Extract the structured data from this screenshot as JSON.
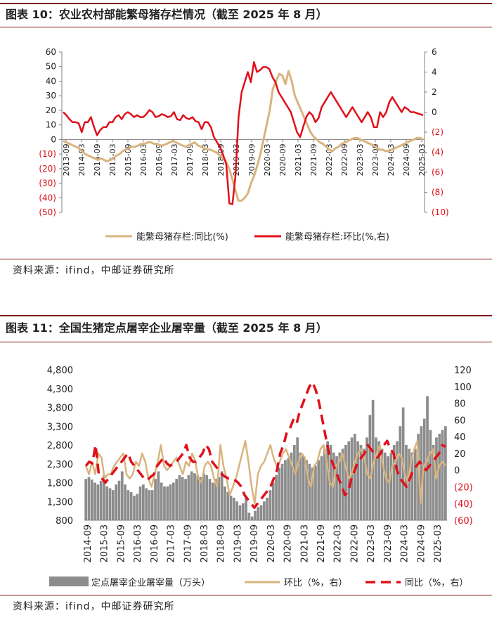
{
  "fig1": {
    "title": "图表 10：农业农村部能繁母猪存栏情况（截至 2025 年 8 月）",
    "source": "资料来源：ifind，中邮证券研究所",
    "chart_data": {
      "type": "line",
      "x_ticks": [
        "2013-09",
        "2014-03",
        "2014-09",
        "2015-03",
        "2015-09",
        "2016-03",
        "2016-09",
        "2017-03",
        "2017-09",
        "2018-03",
        "2018-09",
        "2019-03",
        "2019-09",
        "2020-03",
        "2020-09",
        "2021-03",
        "2021-09",
        "2022-03",
        "2022-09",
        "2023-03",
        "2023-09",
        "2024-03",
        "2024-09",
        "2025-03"
      ],
      "y_left": {
        "min": -50,
        "max": 60,
        "ticks": [
          60,
          50,
          40,
          30,
          20,
          10,
          0,
          -10,
          -20,
          -30,
          -40,
          -50
        ],
        "labels": [
          "60",
          "50",
          "40",
          "30",
          "20",
          "10",
          "0",
          "(10)",
          "(20)",
          "(30)",
          "(40)",
          "(50)"
        ]
      },
      "y_right": {
        "min": -10,
        "max": 6,
        "ticks": [
          6,
          4,
          2,
          0,
          -2,
          -4,
          -6,
          -8,
          -10
        ],
        "labels": [
          "6",
          "4",
          "2",
          "0",
          "(2)",
          "(4)",
          "(6)",
          "(8)",
          "(10)"
        ]
      },
      "series": [
        {
          "name": "能繁母猪存栏:同比(%)",
          "axis": "left",
          "color": "#d9b47e",
          "values": [
            -1,
            -2,
            -3,
            -4,
            -5,
            -6,
            -8,
            -10,
            -11,
            -12,
            -13,
            -14,
            -13,
            -14,
            -15,
            -14,
            -13,
            -11,
            -10,
            -8,
            -7,
            -6,
            -5,
            -5,
            -4,
            -3,
            -3,
            -2,
            -2,
            -3,
            -3,
            -4,
            -4,
            -3,
            -2,
            -1,
            -2,
            -3,
            -4,
            -5,
            -4,
            -3,
            -2,
            -4,
            -5,
            -6,
            -7,
            -7,
            -8,
            -9,
            -11,
            -13,
            -15,
            -20,
            -27,
            -35,
            -42,
            -42,
            -40,
            -37,
            -30,
            -25,
            -18,
            -10,
            0,
            10,
            20,
            35,
            40,
            45,
            44,
            38,
            47,
            40,
            30,
            25,
            20,
            15,
            10,
            5,
            2,
            0,
            -2,
            -3,
            -5,
            -7,
            -8,
            -6,
            -5,
            -3,
            -2,
            -1,
            0,
            1,
            1,
            0,
            -1,
            -2,
            -3,
            -4,
            -5,
            -7,
            -7,
            -8,
            -8,
            -7,
            -6,
            -5,
            -4,
            -3,
            -2,
            -1,
            0,
            1,
            1,
            0
          ]
        },
        {
          "name": "能繁母猪存栏:环比(%,右)",
          "axis": "right",
          "color": "#e0101a",
          "values": [
            0,
            -0.3,
            -0.7,
            -1,
            -1,
            -1.1,
            -2,
            -1,
            -1,
            -0.5,
            -1.5,
            -2.3,
            -1.8,
            -1.5,
            -1.5,
            -1,
            -1,
            -0.5,
            -0.3,
            -0.7,
            -0.2,
            0,
            -0.2,
            -0.5,
            -0.3,
            -0.5,
            -0.5,
            -0.2,
            0.2,
            0,
            -0.5,
            -0.4,
            -0.2,
            -0.3,
            -0.5,
            -0.4,
            0,
            -0.7,
            -0.8,
            -0.3,
            -0.6,
            -0.7,
            -0.5,
            -0.9,
            -1,
            -1.7,
            -1,
            -1,
            -1.5,
            -2.5,
            -3,
            -3.5,
            -4.3,
            -5.2,
            -9.1,
            -9.2,
            -6.3,
            -0.5,
            2,
            3,
            4,
            3,
            5,
            4,
            4.2,
            4.5,
            4.5,
            4.3,
            3.5,
            3,
            2,
            1.5,
            1,
            0.5,
            0,
            -1,
            -2,
            -2.5,
            -1.5,
            -0.5,
            0,
            -0.3,
            -1,
            -0.6,
            0.5,
            1,
            1.5,
            2,
            1.5,
            1,
            0.5,
            0,
            -0.5,
            0,
            0.5,
            0,
            -0.5,
            -1,
            -0.5,
            0,
            -0.5,
            -1.5,
            -1.5,
            0,
            -0.5,
            0,
            1,
            1.5,
            1,
            0.5,
            0,
            0.5,
            0.3,
            0,
            0,
            -0.1,
            -0.2,
            -0.3
          ]
        }
      ],
      "legend": [
        "能繁母猪存栏:同比(%)",
        "能繁母猪存栏:环比(%,右)"
      ]
    }
  },
  "fig2": {
    "title": "图表 11：全国生猪定点屠宰企业屠宰量（截至 2025 年 8 月）",
    "source": "资料来源：ifind，中邮证券研究所",
    "chart_data": {
      "type": "bar",
      "x_ticks": [
        "2014-09",
        "2015-03",
        "2015-09",
        "2016-03",
        "2016-09",
        "2017-03",
        "2017-09",
        "2018-03",
        "2018-09",
        "2019-03",
        "2019-09",
        "2020-03",
        "2020-09",
        "2021-03",
        "2021-09",
        "2022-03",
        "2022-09",
        "2023-03",
        "2023-09",
        "2024-03",
        "2024-09",
        "2025-03"
      ],
      "y_left": {
        "min": 800,
        "max": 4800,
        "ticks": [
          4800,
          4300,
          3800,
          3300,
          2800,
          2300,
          1800,
          1300,
          800
        ],
        "labels": [
          "4,800",
          "4,300",
          "3,800",
          "3,300",
          "2,800",
          "2,300",
          "1,800",
          "1,300",
          "800"
        ]
      },
      "y_right": {
        "min": -60,
        "max": 120,
        "ticks": [
          120,
          100,
          80,
          60,
          40,
          20,
          0,
          -20,
          -40,
          -60
        ],
        "labels": [
          "120",
          "100",
          "80",
          "60",
          "40",
          "20",
          "0",
          "(20)",
          "(40)",
          "(60)"
        ]
      },
      "series": [
        {
          "name": "定点屠宰企业屠宰量（万头）",
          "axis": "left",
          "type": "bar",
          "color": "#8c8c8c",
          "values": [
            1900,
            1950,
            1880,
            1800,
            1750,
            1850,
            2000,
            1700,
            1650,
            1600,
            1750,
            1850,
            2100,
            1750,
            1600,
            1550,
            1450,
            1500,
            1700,
            1750,
            1650,
            1600,
            1600,
            1900,
            2100,
            1800,
            1700,
            1700,
            1750,
            1800,
            1900,
            2000,
            1950,
            1900,
            2000,
            2100,
            2050,
            2000,
            1950,
            2050,
            2000,
            1900,
            1800,
            1900,
            1950,
            2100,
            1700,
            1550,
            1450,
            1400,
            1300,
            1200,
            1250,
            1450,
            1000,
            900,
            1050,
            1150,
            1200,
            1300,
            1400,
            1600,
            1800,
            2000,
            2200,
            2300,
            2400,
            2450,
            2600,
            2800,
            3000,
            2600,
            2500,
            2400,
            2300,
            2200,
            2250,
            2400,
            2500,
            2700,
            2900,
            2800,
            2600,
            2500,
            2600,
            2700,
            2800,
            2900,
            3000,
            3100,
            2900,
            2800,
            2700,
            3000,
            3600,
            4000,
            3000,
            2900,
            2700,
            2600,
            2500,
            2600,
            2800,
            2900,
            3300,
            3800,
            2800,
            2700,
            2600,
            2700,
            3100,
            3300,
            3500,
            4100,
            3200,
            2800,
            3000,
            3100,
            3200,
            3300
          ]
        },
        {
          "name": "环比（%，右）",
          "axis": "right",
          "type": "line",
          "color": "#d9b47e",
          "values": [
            5,
            -5,
            10,
            -5,
            20,
            15,
            -10,
            -5,
            -5,
            5,
            10,
            15,
            20,
            -5,
            -10,
            -5,
            10,
            5,
            20,
            10,
            -10,
            -20,
            -5,
            10,
            30,
            5,
            0,
            5,
            10,
            15,
            5,
            -5,
            10,
            5,
            20,
            10,
            -10,
            -15,
            5,
            10,
            5,
            -10,
            -20,
            30,
            5,
            -10,
            -30,
            -20,
            -10,
            5,
            20,
            35,
            10,
            -20,
            -40,
            -5,
            5,
            10,
            20,
            30,
            15,
            5,
            10,
            20,
            25,
            15,
            5,
            -5,
            10,
            20,
            15,
            -10,
            -20,
            5,
            10,
            25,
            30,
            10,
            -15,
            -20,
            5,
            10,
            20,
            5,
            -10,
            -5,
            10,
            20,
            25,
            15,
            -5,
            -10,
            10,
            20,
            30,
            5,
            -10,
            -15,
            5,
            10,
            20,
            15,
            -5,
            -15,
            10,
            25,
            35,
            -40,
            5,
            10,
            20,
            25,
            -10,
            5,
            10,
            5
          ]
        },
        {
          "name": "同比（%，右）",
          "axis": "right",
          "type": "dashed",
          "color": "#e0101a",
          "values": [
            5,
            10,
            8,
            30,
            -5,
            -10,
            -15,
            -10,
            -5,
            0,
            5,
            10,
            15,
            20,
            10,
            5,
            0,
            -5,
            -10,
            -12,
            -8,
            -5,
            5,
            10,
            15,
            8,
            5,
            8,
            10,
            15,
            20,
            30,
            15,
            10,
            10,
            15,
            20,
            30,
            25,
            10,
            5,
            0,
            -5,
            -8,
            -10,
            -10,
            -12,
            -15,
            -20,
            -30,
            -35,
            -40,
            -45,
            -40,
            -35,
            -30,
            -25,
            -20,
            -10,
            0,
            20,
            30,
            45,
            50,
            60,
            55,
            70,
            80,
            90,
            100,
            105,
            95,
            80,
            60,
            40,
            20,
            10,
            0,
            -10,
            -20,
            -30,
            -25,
            -10,
            0,
            10,
            15,
            20,
            30,
            25,
            20,
            15,
            20,
            30,
            35,
            25,
            20,
            0,
            -10,
            -15,
            -20,
            -10,
            0,
            5,
            10,
            5,
            0,
            5,
            10,
            15,
            20,
            30,
            28
          ]
        }
      ],
      "legend": [
        "定点屠宰企业屠宰量（万头）",
        "环比（%，右）",
        "同比（%，右）"
      ]
    }
  }
}
